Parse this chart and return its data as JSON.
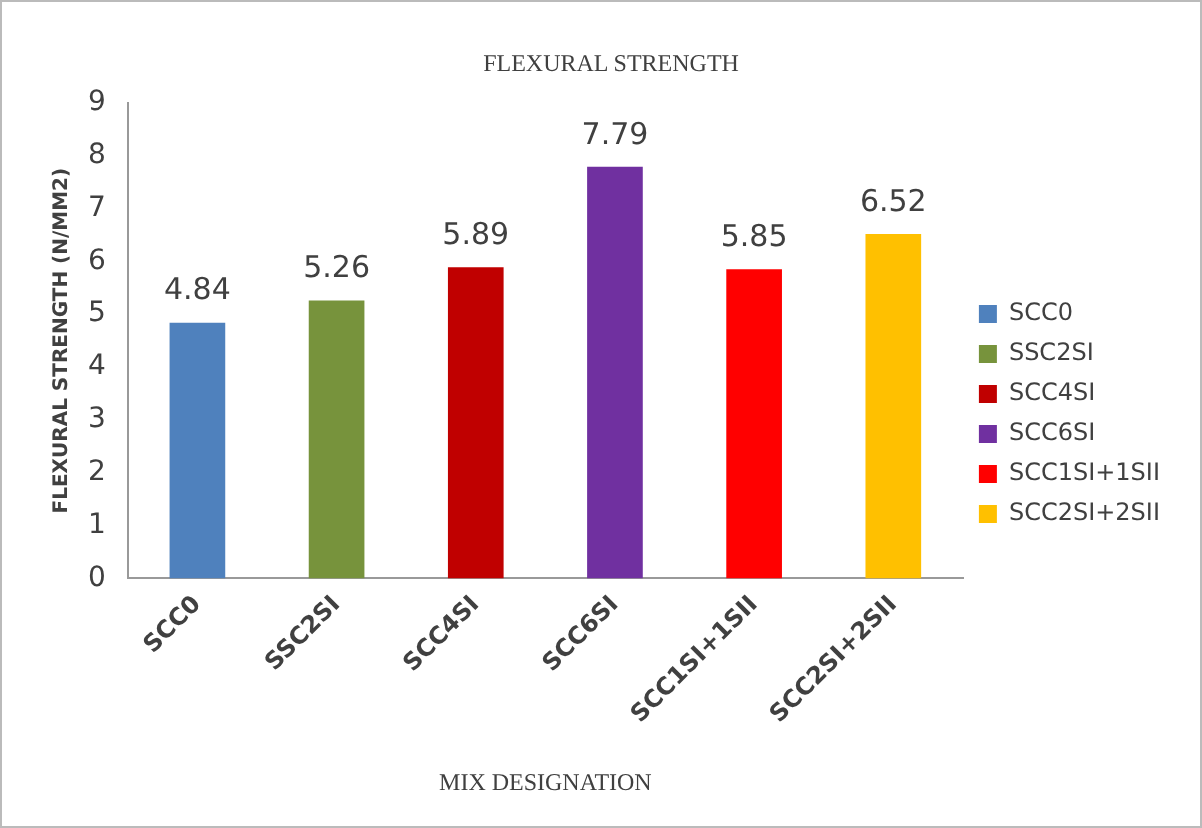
{
  "chart_data": {
    "type": "bar",
    "title": "FLEXURAL STRENGTH",
    "xlabel": "MIX DESIGNATION",
    "ylabel": "FLEXURAL STRENGTH (N/MM2)",
    "categories": [
      "SCC0",
      "SSC2SI",
      "SCC4SI",
      "SCC6SI",
      "SCC1SI+1SII",
      "SCC2SI+2SII"
    ],
    "series": [
      {
        "name": "SCC0",
        "color": "#4f81bd",
        "values": [
          4.84,
          null,
          null,
          null,
          null,
          null
        ]
      },
      {
        "name": "SSC2SI",
        "color": "#77933c",
        "values": [
          null,
          5.26,
          null,
          null,
          null,
          null
        ]
      },
      {
        "name": "SCC4SI",
        "color": "#c00000",
        "values": [
          null,
          null,
          5.89,
          null,
          null,
          null
        ]
      },
      {
        "name": "SCC6SI",
        "color": "#7030a0",
        "values": [
          null,
          null,
          null,
          7.79,
          null,
          null
        ]
      },
      {
        "name": "SCC1SI+1SII",
        "color": "#ff0000",
        "values": [
          null,
          null,
          null,
          null,
          5.85,
          null
        ]
      },
      {
        "name": "SCC2SI+2SII",
        "color": "#ffc000",
        "values": [
          null,
          null,
          null,
          null,
          null,
          6.52
        ]
      }
    ],
    "ylim": [
      0,
      9
    ],
    "yticks": [
      0,
      1,
      2,
      3,
      4,
      5,
      6,
      7,
      8,
      9
    ],
    "grid": false,
    "legend": "right",
    "data_labels": true
  }
}
